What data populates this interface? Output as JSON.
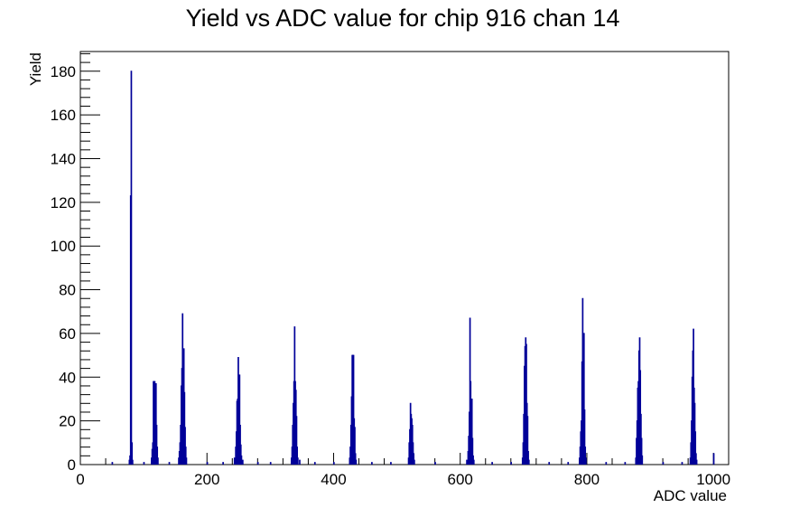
{
  "chart_data": {
    "type": "bar",
    "title": "Yield vs ADC value for chip 916 chan 14",
    "xlabel": "ADC value",
    "ylabel": "Yield",
    "xlim": [
      0,
      1024
    ],
    "ylim": [
      0,
      189
    ],
    "x_ticks": [
      0,
      200,
      400,
      600,
      800,
      1000
    ],
    "y_ticks": [
      0,
      20,
      40,
      60,
      80,
      100,
      120,
      140,
      160,
      180
    ],
    "bin_width": 1,
    "grid": false,
    "legend": "none",
    "line_color": "#000099",
    "bins": [
      [
        50,
        1
      ],
      [
        77,
        2
      ],
      [
        78,
        4
      ],
      [
        79,
        123
      ],
      [
        80,
        180
      ],
      [
        81,
        10
      ],
      [
        82,
        2
      ],
      [
        100,
        1
      ],
      [
        112,
        3
      ],
      [
        113,
        7
      ],
      [
        114,
        10
      ],
      [
        115,
        38
      ],
      [
        116,
        38
      ],
      [
        117,
        38
      ],
      [
        118,
        24
      ],
      [
        119,
        37
      ],
      [
        120,
        18
      ],
      [
        121,
        8
      ],
      [
        122,
        3
      ],
      [
        140,
        1
      ],
      [
        155,
        3
      ],
      [
        156,
        6
      ],
      [
        157,
        10
      ],
      [
        158,
        18
      ],
      [
        159,
        36
      ],
      [
        160,
        44
      ],
      [
        161,
        69
      ],
      [
        162,
        27
      ],
      [
        163,
        53
      ],
      [
        164,
        33
      ],
      [
        165,
        17
      ],
      [
        166,
        8
      ],
      [
        167,
        3
      ],
      [
        200,
        1
      ],
      [
        225,
        1
      ],
      [
        243,
        3
      ],
      [
        245,
        8
      ],
      [
        246,
        15
      ],
      [
        247,
        29
      ],
      [
        248,
        30
      ],
      [
        249,
        49
      ],
      [
        250,
        17
      ],
      [
        251,
        41
      ],
      [
        252,
        18
      ],
      [
        253,
        9
      ],
      [
        254,
        4
      ],
      [
        256,
        2
      ],
      [
        280,
        1
      ],
      [
        300,
        1
      ],
      [
        333,
        3
      ],
      [
        334,
        8
      ],
      [
        335,
        18
      ],
      [
        336,
        28
      ],
      [
        337,
        38
      ],
      [
        338,
        63
      ],
      [
        339,
        38
      ],
      [
        340,
        34
      ],
      [
        341,
        22
      ],
      [
        342,
        8
      ],
      [
        343,
        3
      ],
      [
        346,
        2
      ],
      [
        370,
        1
      ],
      [
        400,
        1
      ],
      [
        425,
        3
      ],
      [
        426,
        8
      ],
      [
        427,
        18
      ],
      [
        428,
        31
      ],
      [
        429,
        50
      ],
      [
        430,
        50
      ],
      [
        431,
        50
      ],
      [
        432,
        21
      ],
      [
        433,
        17
      ],
      [
        434,
        5
      ],
      [
        435,
        2
      ],
      [
        460,
        1
      ],
      [
        490,
        1
      ],
      [
        518,
        3
      ],
      [
        519,
        10
      ],
      [
        520,
        16
      ],
      [
        521,
        28
      ],
      [
        522,
        23
      ],
      [
        523,
        21
      ],
      [
        524,
        18
      ],
      [
        525,
        10
      ],
      [
        526,
        5
      ],
      [
        527,
        2
      ],
      [
        560,
        1
      ],
      [
        610,
        2
      ],
      [
        612,
        6
      ],
      [
        613,
        13
      ],
      [
        614,
        24
      ],
      [
        615,
        67
      ],
      [
        616,
        38
      ],
      [
        617,
        22
      ],
      [
        618,
        30
      ],
      [
        619,
        12
      ],
      [
        620,
        4
      ],
      [
        621,
        2
      ],
      [
        650,
        1
      ],
      [
        680,
        1
      ],
      [
        698,
        3
      ],
      [
        699,
        10
      ],
      [
        700,
        23
      ],
      [
        701,
        45
      ],
      [
        702,
        54
      ],
      [
        703,
        58
      ],
      [
        704,
        55
      ],
      [
        705,
        28
      ],
      [
        706,
        22
      ],
      [
        707,
        6
      ],
      [
        708,
        2
      ],
      [
        740,
        1
      ],
      [
        770,
        1
      ],
      [
        788,
        3
      ],
      [
        789,
        8
      ],
      [
        790,
        15
      ],
      [
        791,
        20
      ],
      [
        792,
        47
      ],
      [
        793,
        76
      ],
      [
        794,
        32
      ],
      [
        795,
        60
      ],
      [
        796,
        25
      ],
      [
        797,
        8
      ],
      [
        798,
        3
      ],
      [
        830,
        1
      ],
      [
        860,
        1
      ],
      [
        877,
        3
      ],
      [
        878,
        12
      ],
      [
        879,
        20
      ],
      [
        880,
        35
      ],
      [
        881,
        38
      ],
      [
        882,
        52
      ],
      [
        883,
        58
      ],
      [
        884,
        43
      ],
      [
        885,
        23
      ],
      [
        886,
        12
      ],
      [
        887,
        4
      ],
      [
        920,
        1
      ],
      [
        950,
        1
      ],
      [
        963,
        3
      ],
      [
        964,
        10
      ],
      [
        965,
        20
      ],
      [
        966,
        40
      ],
      [
        967,
        52
      ],
      [
        968,
        62
      ],
      [
        969,
        35
      ],
      [
        970,
        28
      ],
      [
        971,
        15
      ],
      [
        972,
        5
      ],
      [
        973,
        2
      ],
      [
        1000,
        5
      ]
    ]
  }
}
